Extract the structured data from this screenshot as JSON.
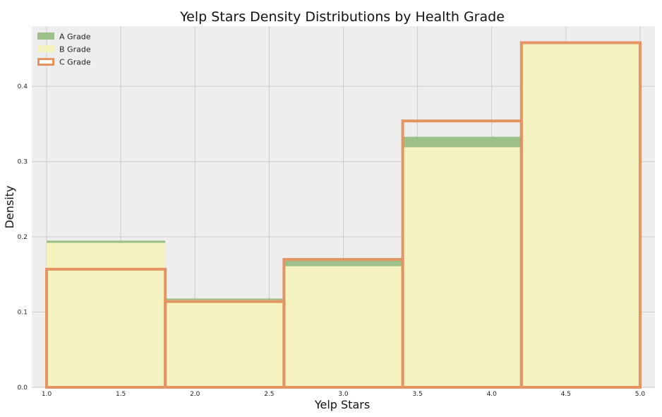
{
  "chart_data": {
    "type": "bar",
    "title": "Yelp Stars Density Distributions by Health Grade",
    "xlabel": "Yelp Stars",
    "ylabel": "Density",
    "xlim": [
      0.9,
      5.1
    ],
    "ylim": [
      0,
      0.48
    ],
    "xticks": [
      "1.0",
      "1.5",
      "2.0",
      "2.5",
      "3.0",
      "3.5",
      "4.0",
      "4.5",
      "5.0"
    ],
    "yticks": [
      "0.0",
      "0.1",
      "0.2",
      "0.3",
      "0.4"
    ],
    "grid": true,
    "legend_position": "top-left",
    "bin_edges": [
      1.0,
      1.8,
      2.6,
      3.4,
      4.2,
      5.0
    ],
    "series": [
      {
        "name": "A Grade",
        "style": "filled",
        "color": "#9cc087",
        "values": [
          0.195,
          0.118,
          0.171,
          0.333,
          0.458
        ]
      },
      {
        "name": "B Grade",
        "style": "filled",
        "color": "#f5f3bf",
        "values": [
          0.192,
          0.116,
          0.161,
          0.319,
          0.457
        ]
      },
      {
        "name": "C Grade",
        "style": "step-outline",
        "color": "#e39462",
        "values": [
          0.157,
          0.114,
          0.17,
          0.354,
          0.458
        ]
      }
    ]
  },
  "colors": {
    "plot_background": "#eeeeee",
    "grid": "#cbcbcb"
  }
}
